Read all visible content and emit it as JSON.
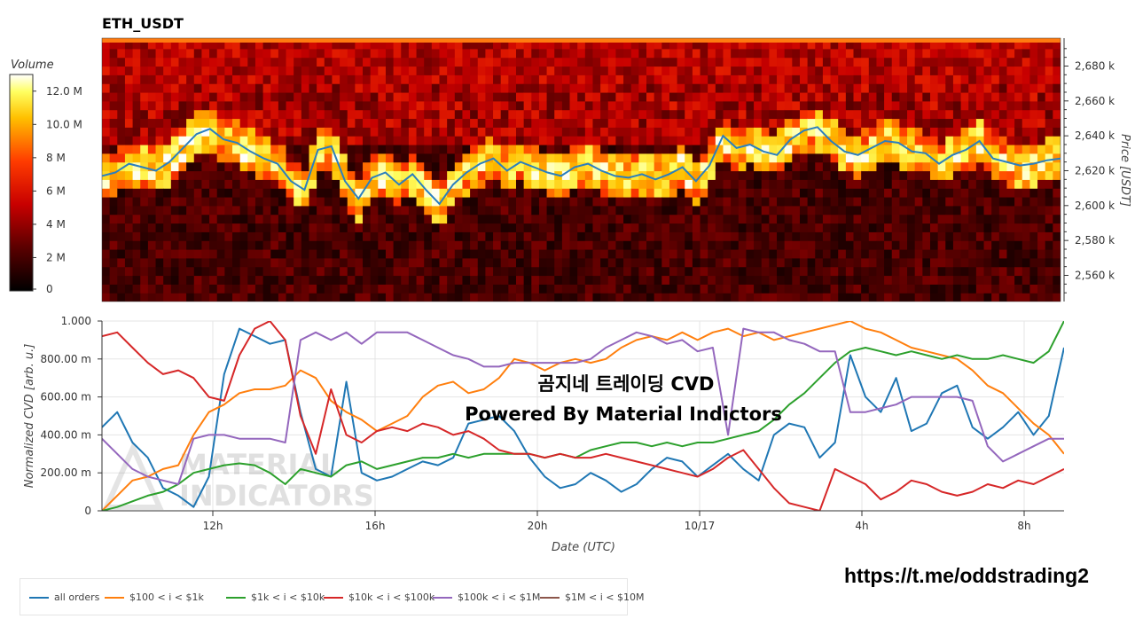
{
  "heatmap": {
    "title": "ETH_USDT",
    "colorbar_title": "Volume",
    "colorbar_ticks": [
      "0",
      "2 M",
      "4 M",
      "6 M",
      "8 M",
      "10.0 M",
      "12.0 M"
    ],
    "price_axis_label": "Price [USDT]",
    "price_ticks": [
      "2,560 k",
      "2,580 k",
      "2,600 k",
      "2,620 k",
      "2,640 k",
      "2,660 k",
      "2,680 k"
    ]
  },
  "watermark": {
    "line1": "곰지네 트레이딩 CVD",
    "line2": "Powered By Material Indictors",
    "logo_text_1": "MATERIAL",
    "logo_text_2": "INDICATORS"
  },
  "footer_url": "https://t.me/oddstrading2",
  "chart_data": [
    {
      "type": "heatmap",
      "title": "ETH_USDT",
      "colorbar": {
        "title": "Volume",
        "range": [
          0,
          13000000
        ]
      },
      "ylabel": "Price [USDT]",
      "ylim": [
        2545,
        2696
      ],
      "price_series": {
        "name": "price",
        "y": [
          2617,
          2619,
          2624,
          2622,
          2620,
          2625,
          2633,
          2641,
          2644,
          2638,
          2636,
          2631,
          2627,
          2624,
          2614,
          2609,
          2632,
          2634,
          2614,
          2604,
          2616,
          2619,
          2612,
          2618,
          2609,
          2601,
          2612,
          2619,
          2624,
          2627,
          2620,
          2625,
          2622,
          2619,
          2617,
          2622,
          2624,
          2620,
          2617,
          2616,
          2618,
          2615,
          2618,
          2622,
          2614,
          2623,
          2640,
          2633,
          2635,
          2631,
          2629,
          2638,
          2643,
          2645,
          2637,
          2631,
          2629,
          2633,
          2637,
          2636,
          2631,
          2630,
          2624,
          2629,
          2632,
          2637,
          2627,
          2625,
          2623,
          2624,
          2626,
          2627
        ]
      }
    },
    {
      "type": "line",
      "xlabel": "Date (UTC)",
      "ylabel": "Normalized CVD [arb. u.]",
      "ylim": [
        0,
        1
      ],
      "y_ticks": [
        "0",
        "200.00 m",
        "400.00 m",
        "600.00 m",
        "800.00 m",
        "1.000"
      ],
      "x_ticks": [
        "12h",
        "16h",
        "20h",
        "10/17",
        "4h",
        "8h"
      ],
      "series": [
        {
          "name": "all orders",
          "color": "#1f77b4",
          "values": [
            0.44,
            0.52,
            0.36,
            0.28,
            0.12,
            0.08,
            0.02,
            0.18,
            0.72,
            0.96,
            0.92,
            0.88,
            0.9,
            0.52,
            0.22,
            0.18,
            0.68,
            0.2,
            0.16,
            0.18,
            0.22,
            0.26,
            0.24,
            0.28,
            0.46,
            0.48,
            0.5,
            0.42,
            0.28,
            0.18,
            0.12,
            0.14,
            0.2,
            0.16,
            0.1,
            0.14,
            0.22,
            0.28,
            0.26,
            0.18,
            0.24,
            0.3,
            0.22,
            0.16,
            0.4,
            0.46,
            0.44,
            0.28,
            0.36,
            0.82,
            0.6,
            0.52,
            0.7,
            0.42,
            0.46,
            0.62,
            0.66,
            0.44,
            0.38,
            0.44,
            0.52,
            0.4,
            0.5,
            0.86
          ]
        },
        {
          "name": "$100 < i < $1k",
          "color": "#ff7f0e",
          "values": [
            0.0,
            0.08,
            0.16,
            0.18,
            0.22,
            0.24,
            0.4,
            0.52,
            0.56,
            0.62,
            0.64,
            0.64,
            0.66,
            0.74,
            0.7,
            0.58,
            0.52,
            0.48,
            0.42,
            0.46,
            0.5,
            0.6,
            0.66,
            0.68,
            0.62,
            0.64,
            0.7,
            0.8,
            0.78,
            0.74,
            0.78,
            0.8,
            0.78,
            0.8,
            0.86,
            0.9,
            0.92,
            0.9,
            0.94,
            0.9,
            0.94,
            0.96,
            0.92,
            0.94,
            0.9,
            0.92,
            0.94,
            0.96,
            0.98,
            1.0,
            0.96,
            0.94,
            0.9,
            0.86,
            0.84,
            0.82,
            0.8,
            0.74,
            0.66,
            0.62,
            0.54,
            0.46,
            0.4,
            0.3
          ]
        },
        {
          "name": "$1k < i < $10k",
          "color": "#2ca02c",
          "values": [
            0.0,
            0.02,
            0.05,
            0.08,
            0.1,
            0.14,
            0.2,
            0.22,
            0.24,
            0.25,
            0.24,
            0.2,
            0.14,
            0.22,
            0.2,
            0.18,
            0.24,
            0.26,
            0.22,
            0.24,
            0.26,
            0.28,
            0.28,
            0.3,
            0.28,
            0.3,
            0.3,
            0.3,
            0.3,
            0.28,
            0.3,
            0.28,
            0.32,
            0.34,
            0.36,
            0.36,
            0.34,
            0.36,
            0.34,
            0.36,
            0.36,
            0.38,
            0.4,
            0.42,
            0.48,
            0.56,
            0.62,
            0.7,
            0.78,
            0.84,
            0.86,
            0.84,
            0.82,
            0.84,
            0.82,
            0.8,
            0.82,
            0.8,
            0.8,
            0.82,
            0.8,
            0.78,
            0.84,
            1.0
          ]
        },
        {
          "name": "$10k < i < $100k",
          "color": "#d62728",
          "values": [
            0.92,
            0.94,
            0.86,
            0.78,
            0.72,
            0.74,
            0.7,
            0.6,
            0.58,
            0.82,
            0.96,
            1.0,
            0.9,
            0.5,
            0.3,
            0.64,
            0.4,
            0.36,
            0.42,
            0.44,
            0.42,
            0.46,
            0.44,
            0.4,
            0.42,
            0.38,
            0.32,
            0.3,
            0.3,
            0.28,
            0.3,
            0.28,
            0.28,
            0.3,
            0.28,
            0.26,
            0.24,
            0.22,
            0.2,
            0.18,
            0.22,
            0.28,
            0.32,
            0.22,
            0.12,
            0.04,
            0.02,
            0.0,
            0.22,
            0.18,
            0.14,
            0.06,
            0.1,
            0.16,
            0.14,
            0.1,
            0.08,
            0.1,
            0.14,
            0.12,
            0.16,
            0.14,
            0.18,
            0.22
          ]
        },
        {
          "name": "$100k < i < $1M",
          "color": "#9467bd",
          "values": [
            0.38,
            0.3,
            0.22,
            0.18,
            0.16,
            0.14,
            0.38,
            0.4,
            0.4,
            0.38,
            0.38,
            0.38,
            0.36,
            0.9,
            0.94,
            0.9,
            0.94,
            0.88,
            0.94,
            0.94,
            0.94,
            0.9,
            0.86,
            0.82,
            0.8,
            0.76,
            0.76,
            0.78,
            0.78,
            0.78,
            0.78,
            0.78,
            0.8,
            0.86,
            0.9,
            0.94,
            0.92,
            0.88,
            0.9,
            0.84,
            0.86,
            0.4,
            0.96,
            0.94,
            0.94,
            0.9,
            0.88,
            0.84,
            0.84,
            0.52,
            0.52,
            0.54,
            0.56,
            0.6,
            0.6,
            0.6,
            0.6,
            0.58,
            0.34,
            0.26,
            0.3,
            0.34,
            0.38,
            0.38
          ]
        },
        {
          "name": "$1M < i < $10M",
          "color": "#8c564b",
          "values": []
        }
      ]
    }
  ]
}
